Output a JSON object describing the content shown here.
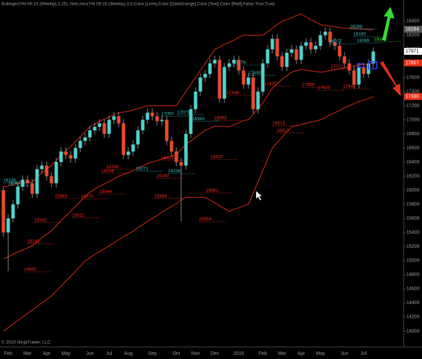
{
  "chart_data": {
    "type": "candlestick",
    "title": "Bollinger(YM 09-15 (Weekly),2,25), NetLines(YM 09-15 (Weekly),3,5,Color [Lime],Color [DarkOrange],Color [Teal],Color [Red],False,True,True)",
    "copyright": "© 2015 NinjaTrader, LLC",
    "categories": [
      null,
      "Feb",
      null,
      null,
      null,
      "Mar",
      null,
      null,
      null,
      "Apr",
      null,
      null,
      null,
      "May",
      null,
      null,
      null,
      null,
      "Jun",
      null,
      null,
      null,
      "Jul",
      null,
      null,
      null,
      "Aug",
      null,
      null,
      null,
      null,
      "Sep",
      null,
      null,
      null,
      null,
      "Oct",
      null,
      null,
      null,
      "Nov",
      null,
      null,
      null,
      "Dec",
      null,
      null,
      null,
      null,
      "2015",
      null,
      null,
      null,
      null,
      "Feb",
      null,
      null,
      null,
      "Mar",
      null,
      null,
      null,
      "Apr",
      null,
      null,
      null,
      "May",
      null,
      null,
      null,
      null,
      "Jun",
      null,
      null,
      null,
      "Jul",
      null,
      null
    ],
    "open": [
      16000,
      15400,
      15600,
      15800,
      16050,
      16150,
      16100,
      15950,
      16300,
      16350,
      16200,
      16100,
      16400,
      16550,
      16500,
      16450,
      16600,
      16700,
      16750,
      16850,
      16900,
      16950,
      16800,
      17000,
      17050,
      16950,
      16500,
      16550,
      16650,
      16850,
      17000,
      17100,
      17050,
      16980,
      17000,
      16700,
      16550,
      16400,
      16350,
      16800,
      17150,
      17400,
      17600,
      17650,
      17800,
      17850,
      17300,
      17750,
      17800,
      17850,
      17700,
      17500,
      17600,
      17150,
      17400,
      17800,
      18000,
      18150,
      17900,
      17750,
      17950,
      18000,
      17850,
      18050,
      18100,
      18000,
      18050,
      18200,
      18250,
      18100,
      18050,
      17900,
      17800,
      17700,
      17500,
      17750,
      17650,
      17800
    ],
    "high": [
      16060,
      15660,
      15860,
      16110,
      16210,
      16210,
      16160,
      16360,
      16410,
      16410,
      16260,
      16460,
      16610,
      16610,
      16560,
      16660,
      16760,
      16810,
      16910,
      16960,
      17010,
      17010,
      17060,
      17110,
      17110,
      17010,
      16610,
      16710,
      16910,
      17060,
      17160,
      17160,
      17110,
      17060,
      17060,
      16760,
      16610,
      16460,
      16860,
      17210,
      17460,
      17660,
      17710,
      17860,
      17910,
      17910,
      17810,
      17860,
      17910,
      17910,
      17760,
      17660,
      17660,
      17460,
      17860,
      18060,
      18210,
      18210,
      17960,
      18010,
      18060,
      18060,
      18110,
      18160,
      18160,
      18110,
      18260,
      18310,
      18310,
      18160,
      18110,
      17960,
      17860,
      17760,
      17810,
      17810,
      17860,
      18030
    ],
    "low": [
      15340,
      14850,
      15540,
      15740,
      15990,
      16040,
      15890,
      15890,
      16240,
      16140,
      16040,
      16040,
      16340,
      16440,
      16390,
      16390,
      16540,
      16640,
      16690,
      16790,
      16840,
      16740,
      16740,
      16940,
      16890,
      16440,
      16440,
      16490,
      16590,
      16790,
      16940,
      16990,
      16920,
      16920,
      16640,
      16490,
      16340,
      15560,
      16290,
      16740,
      17090,
      17340,
      17540,
      17590,
      17740,
      17240,
      17240,
      17690,
      17740,
      17640,
      17440,
      17440,
      17090,
      17090,
      17340,
      17740,
      17940,
      17840,
      17690,
      17690,
      17890,
      17790,
      17790,
      17990,
      17940,
      17940,
      17990,
      18140,
      18040,
      17990,
      17840,
      17740,
      17640,
      17440,
      17440,
      17590,
      17590,
      17740
    ],
    "close": [
      15400,
      15600,
      15800,
      16050,
      16150,
      16100,
      15950,
      16300,
      16350,
      16200,
      16100,
      16400,
      16550,
      16500,
      16450,
      16600,
      16700,
      16750,
      16850,
      16900,
      16950,
      16800,
      17000,
      17050,
      16950,
      16500,
      16550,
      16650,
      16850,
      17000,
      17100,
      17050,
      16980,
      17000,
      16700,
      16550,
      16400,
      16350,
      16800,
      17150,
      17400,
      17600,
      17650,
      17800,
      17850,
      17300,
      17750,
      17800,
      17850,
      17700,
      17500,
      17600,
      17150,
      17400,
      17800,
      18000,
      18150,
      17900,
      17750,
      17950,
      18000,
      17850,
      18050,
      18100,
      18000,
      18050,
      18200,
      18250,
      18100,
      18050,
      17900,
      17800,
      17700,
      17500,
      17750,
      17650,
      17800,
      17970
    ],
    "upper": [
      16050,
      16060,
      16080,
      16100,
      16100,
      16110,
      16120,
      16180,
      16250,
      16300,
      16350,
      16420,
      16500,
      16560,
      16620,
      16690,
      16760,
      16830,
      16900,
      16940,
      16980,
      17010,
      17040,
      17070,
      17100,
      17110,
      17120,
      17140,
      17160,
      17180,
      17200,
      17200,
      17200,
      17200,
      17200,
      17200,
      17200,
      17300,
      17400,
      17500,
      17600,
      17700,
      17800,
      17900,
      18000,
      18030,
      18070,
      18100,
      18130,
      18170,
      18200,
      18200,
      18200,
      18200,
      18200,
      18250,
      18300,
      18350,
      18400,
      18420,
      18450,
      18480,
      18500,
      18460,
      18420,
      18390,
      18350,
      18340,
      18330,
      18320,
      18310,
      18300,
      18300,
      18300,
      18290,
      18290,
      18280,
      18280
    ],
    "middle": [
      15025,
      15055,
      15090,
      15125,
      15150,
      15180,
      15210,
      15265,
      15325,
      15375,
      15425,
      15495,
      15570,
      15635,
      15700,
      15770,
      15840,
      15915,
      15970,
      16015,
      16055,
      16090,
      16125,
      16160,
      16200,
      16225,
      16250,
      16280,
      16315,
      16345,
      16380,
      16400,
      16420,
      16445,
      16465,
      16485,
      16505,
      16580,
      16650,
      16700,
      16750,
      16800,
      16850,
      16880,
      16910,
      16905,
      16905,
      16900,
      16930,
      16960,
      16990,
      17000,
      17080,
      17160,
      17240,
      17345,
      17450,
      17515,
      17575,
      17625,
      17675,
      17700,
      17715,
      17705,
      17695,
      17685,
      17675,
      17685,
      17700,
      17710,
      17720,
      17735,
      17750,
      17765,
      17775,
      17785,
      17790,
      17805
    ],
    "lower": [
      14000,
      14050,
      14100,
      14150,
      14200,
      14250,
      14300,
      14350,
      14400,
      14450,
      14500,
      14570,
      14640,
      14710,
      14780,
      14850,
      14920,
      15000,
      15040,
      15090,
      15130,
      15170,
      15210,
      15250,
      15300,
      15340,
      15380,
      15420,
      15470,
      15510,
      15560,
      15600,
      15640,
      15690,
      15730,
      15770,
      15810,
      15860,
      15900,
      15900,
      15900,
      15900,
      15900,
      15860,
      15820,
      15780,
      15740,
      15700,
      15730,
      15750,
      15780,
      15800,
      15960,
      16120,
      16280,
      16440,
      16600,
      16680,
      16750,
      16830,
      16900,
      16920,
      16930,
      16950,
      16970,
      16980,
      17000,
      17030,
      17070,
      17100,
      17130,
      17170,
      17200,
      17230,
      17260,
      17280,
      17300,
      17330
    ],
    "band_color": "#e02a18",
    "up_color": "#4fd4cc",
    "down_color": "#ea4a2c",
    "wick_color": "#8a8a8a",
    "ylim": [
      13780,
      18700
    ],
    "yticks": [
      14000,
      14200,
      14400,
      14600,
      14800,
      15000,
      15200,
      15400,
      15600,
      15800,
      16000,
      16200,
      16400,
      16600,
      16800,
      17000,
      17200,
      17400,
      17600,
      17800,
      18000,
      18200,
      18400
    ],
    "net_lines": [
      {
        "value": 16296,
        "color": "#ff2a1a"
      },
      {
        "value": 16236,
        "color": "#ff2a1a"
      },
      {
        "value": 15944,
        "color": "#ff2a1a"
      },
      {
        "value": 15875,
        "color": "#ff2a1a"
      },
      {
        "value": 15883,
        "color": "#ff2a1a"
      },
      {
        "value": 15611,
        "color": "#ff2a1a"
      },
      {
        "value": 15542,
        "color": "#ff2a1a"
      },
      {
        "value": 15241,
        "color": "#ff2a1a"
      },
      {
        "value": 14842,
        "color": "#ff2a1a"
      },
      {
        "value": 16423,
        "color": "#ff2a1a"
      },
      {
        "value": 16169,
        "color": "#ff2a1a"
      },
      {
        "value": 15884,
        "color": "#ff2a1a"
      },
      {
        "value": 16437,
        "color": "#ff2a1a"
      },
      {
        "value": 15962,
        "color": "#ff2a1a"
      },
      {
        "value": 15554,
        "color": "#ff2a1a"
      },
      {
        "value": 16993,
        "color": "#ff2a1a"
      },
      {
        "value": 17348,
        "color": "#ff2a1a"
      },
      {
        "value": 16913,
        "color": "#ff2a1a"
      },
      {
        "value": 16813,
        "color": "#ff2a1a"
      },
      {
        "value": 17475,
        "color": "#ff2a1a"
      },
      {
        "value": 17459,
        "color": "#ff2a1a"
      },
      {
        "value": 17420,
        "color": "#ff2a1a"
      },
      {
        "value": 17721,
        "color": "#ff2a1a"
      },
      {
        "value": 17441,
        "color": "#ff2a1a"
      },
      {
        "value": 16106,
        "color": "#3cc6c6"
      },
      {
        "value": 16067,
        "color": "#3cc6c6"
      },
      {
        "value": 16271,
        "color": "#3cc6c6"
      },
      {
        "value": 16236,
        "color": "#3cc6c6"
      },
      {
        "value": 17050,
        "color": "#3cc6c6"
      },
      {
        "value": 17071,
        "color": "#3cc6c6"
      },
      {
        "value": 16980,
        "color": "#3cc6c6"
      },
      {
        "value": 17776,
        "color": "#3cc6c6"
      },
      {
        "value": 17630,
        "color": "#3cc6c6"
      },
      {
        "value": 18077,
        "color": "#3cc6c6"
      },
      {
        "value": 18180,
        "color": "#3cc6c6"
      },
      {
        "value": 18089,
        "color": "#3cc6c6"
      },
      {
        "value": 18288,
        "color": "#3cc6c6"
      },
      {
        "value": 18108,
        "color": "#33dd33"
      }
    ],
    "price_markers": [
      {
        "value": 18284,
        "background": "#5a5a5a",
        "color": "#ffffff"
      },
      {
        "value": 17971,
        "background": "#ffffff",
        "color": "#000000"
      },
      {
        "value": 17807,
        "background": "#e8301c",
        "color": "#ffffff"
      },
      {
        "value": 17330,
        "background": "#e8301c",
        "color": "#ffffff"
      }
    ]
  }
}
